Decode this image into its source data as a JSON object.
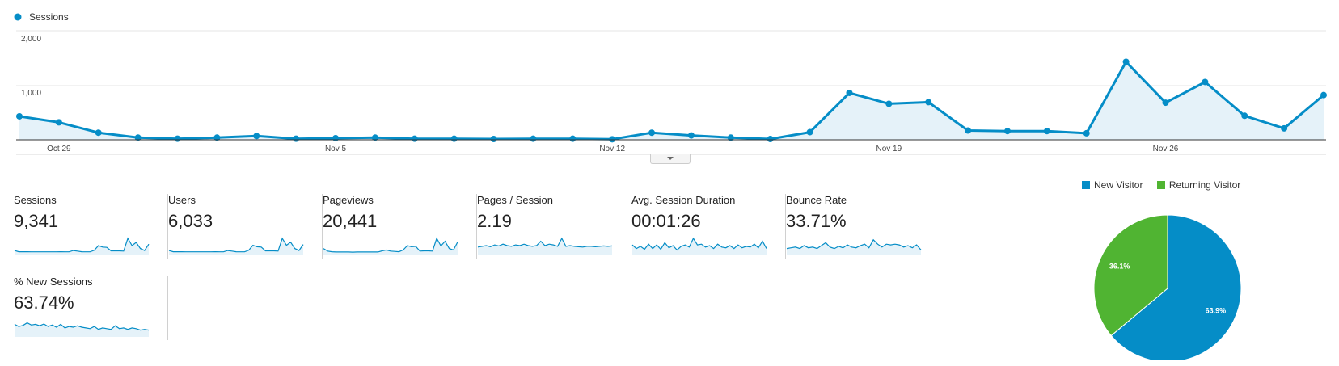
{
  "colors": {
    "series": "#058dc7",
    "fill": "#e5f2f9",
    "new_visitor": "#058dc7",
    "returning_visitor": "#50b432",
    "grid": "#e6e6e6"
  },
  "chart_data": [
    {
      "type": "line",
      "title": "",
      "legend": [
        "Sessions"
      ],
      "xlabel": "",
      "ylabel": "",
      "ylim": [
        0,
        2000
      ],
      "yticks": [
        "2,000",
        "1,000"
      ],
      "ytick_values": [
        2000,
        1000
      ],
      "xtick_labels": [
        "Oct 29",
        "Nov 5",
        "Nov 12",
        "Nov 19",
        "Nov 26"
      ],
      "xtick_index": [
        1,
        8,
        15,
        22,
        29
      ],
      "x": [
        "Oct 28",
        "Oct 29",
        "Oct 30",
        "Oct 31",
        "Nov 1",
        "Nov 2",
        "Nov 3",
        "Nov 4",
        "Nov 5",
        "Nov 6",
        "Nov 7",
        "Nov 8",
        "Nov 9",
        "Nov 10",
        "Nov 11",
        "Nov 12",
        "Nov 13",
        "Nov 14",
        "Nov 15",
        "Nov 16",
        "Nov 17",
        "Nov 18",
        "Nov 19",
        "Nov 20",
        "Nov 21",
        "Nov 22",
        "Nov 23",
        "Nov 24",
        "Nov 25",
        "Nov 26",
        "Nov 27",
        "Nov 28",
        "Nov 29",
        "Nov 30"
      ],
      "series": [
        {
          "name": "Sessions",
          "values": [
            430,
            320,
            130,
            40,
            20,
            40,
            70,
            20,
            30,
            40,
            20,
            20,
            15,
            20,
            20,
            10,
            130,
            80,
            40,
            15,
            140,
            860,
            660,
            690,
            170,
            160,
            160,
            120,
            1430,
            680,
            1060,
            440,
            210,
            820
          ]
        }
      ]
    },
    {
      "type": "pie",
      "title": "",
      "legend": [
        "New Visitor",
        "Returning Visitor"
      ],
      "slices": [
        {
          "label": "New Visitor",
          "value": 63.9,
          "display": "63.9%"
        },
        {
          "label": "Returning Visitor",
          "value": 36.1,
          "display": "36.1%"
        }
      ]
    }
  ],
  "scorecards": [
    {
      "label": "Sessions",
      "value": "9,341",
      "spark": [
        0.16,
        0.08,
        0.08,
        0.08,
        0.07,
        0.07,
        0.07,
        0.07,
        0.07,
        0.07,
        0.07,
        0.08,
        0.07,
        0.07,
        0.16,
        0.12,
        0.08,
        0.07,
        0.07,
        0.18,
        0.5,
        0.4,
        0.38,
        0.14,
        0.14,
        0.14,
        0.12,
        1.0,
        0.5,
        0.72,
        0.3,
        0.16,
        0.6
      ]
    },
    {
      "label": "Users",
      "value": "6,033",
      "spark": [
        0.16,
        0.08,
        0.08,
        0.08,
        0.07,
        0.07,
        0.07,
        0.07,
        0.07,
        0.07,
        0.07,
        0.08,
        0.07,
        0.07,
        0.16,
        0.12,
        0.08,
        0.07,
        0.07,
        0.18,
        0.52,
        0.42,
        0.4,
        0.14,
        0.14,
        0.14,
        0.12,
        1.0,
        0.52,
        0.74,
        0.3,
        0.16,
        0.58
      ]
    },
    {
      "label": "Pageviews",
      "value": "20,441",
      "spark": [
        0.3,
        0.12,
        0.08,
        0.06,
        0.06,
        0.06,
        0.06,
        0.05,
        0.06,
        0.06,
        0.06,
        0.06,
        0.06,
        0.06,
        0.14,
        0.2,
        0.12,
        0.1,
        0.08,
        0.2,
        0.5,
        0.42,
        0.45,
        0.12,
        0.14,
        0.14,
        0.12,
        1.0,
        0.48,
        0.8,
        0.3,
        0.2,
        0.75
      ]
    },
    {
      "label": "Pages / Session",
      "value": "2.19",
      "spark": [
        0.4,
        0.45,
        0.5,
        0.42,
        0.55,
        0.48,
        0.6,
        0.5,
        0.45,
        0.55,
        0.5,
        0.6,
        0.5,
        0.45,
        0.5,
        0.8,
        0.5,
        0.6,
        0.55,
        0.45,
        1.0,
        0.45,
        0.5,
        0.45,
        0.42,
        0.4,
        0.45,
        0.45,
        0.42,
        0.45,
        0.48,
        0.45,
        0.48
      ]
    },
    {
      "label": "Avg. Session Duration",
      "value": "00:01:26",
      "spark": [
        0.55,
        0.3,
        0.45,
        0.25,
        0.6,
        0.3,
        0.55,
        0.25,
        0.7,
        0.35,
        0.5,
        0.2,
        0.45,
        0.55,
        0.4,
        1.0,
        0.55,
        0.6,
        0.4,
        0.5,
        0.3,
        0.6,
        0.4,
        0.35,
        0.5,
        0.3,
        0.55,
        0.35,
        0.45,
        0.4,
        0.6,
        0.35,
        0.8,
        0.3
      ]
    },
    {
      "label": "Bounce Rate",
      "value": "33.71%",
      "spark": [
        0.3,
        0.35,
        0.4,
        0.3,
        0.5,
        0.35,
        0.4,
        0.3,
        0.5,
        0.7,
        0.4,
        0.3,
        0.45,
        0.35,
        0.55,
        0.4,
        0.35,
        0.5,
        0.6,
        0.35,
        0.9,
        0.6,
        0.4,
        0.6,
        0.55,
        0.6,
        0.55,
        0.4,
        0.5,
        0.35,
        0.55,
        0.2
      ]
    },
    {
      "label": "% New Sessions",
      "value": "63.74%",
      "spark": [
        0.7,
        0.55,
        0.62,
        0.8,
        0.65,
        0.7,
        0.6,
        0.72,
        0.55,
        0.65,
        0.5,
        0.7,
        0.45,
        0.55,
        0.5,
        0.6,
        0.5,
        0.45,
        0.4,
        0.55,
        0.35,
        0.45,
        0.4,
        0.35,
        0.6,
        0.4,
        0.45,
        0.35,
        0.45,
        0.4,
        0.3,
        0.35,
        0.3
      ]
    }
  ]
}
